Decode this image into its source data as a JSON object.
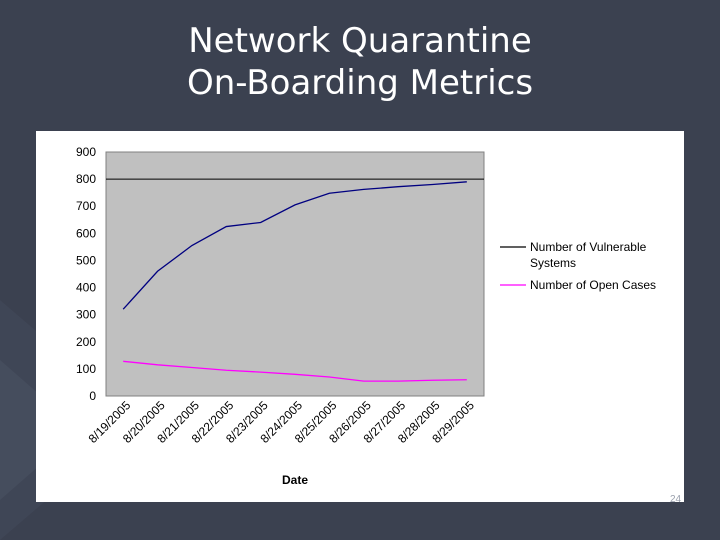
{
  "slide": {
    "title_line1": "Network Quarantine",
    "title_line2": "On-Boarding Metrics",
    "page_number": "24"
  },
  "chart_data": {
    "type": "line",
    "xlabel": "Date",
    "ylabel": "",
    "ylim": [
      0,
      900
    ],
    "yticks": [
      0,
      100,
      200,
      300,
      400,
      500,
      600,
      700,
      800,
      900
    ],
    "grid": "horizontal at 800 only",
    "legend_position": "right",
    "plot_background": "#c0c0c0",
    "x": [
      "8/19/2005",
      "8/20/2005",
      "8/21/2005",
      "8/22/2005",
      "8/23/2005",
      "8/24/2005",
      "8/25/2005",
      "8/26/2005",
      "8/27/2005",
      "8/28/2005",
      "8/29/2005"
    ],
    "series": [
      {
        "name": "Number of Vulnerable Systems",
        "color": "#000080",
        "legend_color": "#000000",
        "values": [
          320,
          460,
          555,
          625,
          640,
          705,
          748,
          762,
          772,
          780,
          790
        ]
      },
      {
        "name": "Number of Open Cases",
        "color": "#ff00ff",
        "legend_color": "#ff00ff",
        "values": [
          128,
          115,
          105,
          95,
          88,
          80,
          70,
          55,
          55,
          58,
          60
        ]
      }
    ]
  }
}
